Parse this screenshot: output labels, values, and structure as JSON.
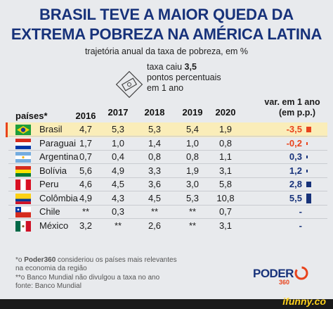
{
  "title_line1": "BRASIL TEVE A MAIOR QUEDA DA",
  "title_line2": "EXTREMA POBREZA NA AMÉRICA LATINA",
  "subtitle": "trajetória anual da taxa de pobreza, em %",
  "callout": {
    "prefix": "taxa caiu ",
    "value": "3,5",
    "line2": "pontos percentuais",
    "line3": "em 1 ano"
  },
  "headers": {
    "country": "países*",
    "years": [
      "2016",
      "2017",
      "2018",
      "2019",
      "2020"
    ],
    "var_line1": "var. em 1 ano",
    "var_line2": "(em p.p.)"
  },
  "colors": {
    "title": "#17327a",
    "highlight": "#faedb9",
    "negative": "#e8431c",
    "positive": "#17327a"
  },
  "chart_data": {
    "type": "table",
    "title": "BRASIL TEVE A MAIOR QUEDA DA EXTREMA POBREZA NA AMÉRICA LATINA",
    "subtitle": "trajetória anual da taxa de pobreza, em %",
    "columns": [
      "2016",
      "2017",
      "2018",
      "2019",
      "2020",
      "var. em 1 ano (em p.p.)"
    ],
    "rows": [
      {
        "country": "Brasil",
        "flag": "brazil-flag",
        "values": [
          "4,7",
          "5,3",
          "5,3",
          "5,4",
          "1,9"
        ],
        "var": "-3,5",
        "var_num": -3.5
      },
      {
        "country": "Paraguai",
        "flag": "paraguay-flag",
        "values": [
          "1,7",
          "1,0",
          "1,4",
          "1,0",
          "0,8"
        ],
        "var": "-0,2",
        "var_num": -0.2
      },
      {
        "country": "Argentina",
        "flag": "argentina-flag",
        "values": [
          "0,7",
          "0,4",
          "0,8",
          "0,8",
          "1,1"
        ],
        "var": "0,3",
        "var_num": 0.3
      },
      {
        "country": "Bolívia",
        "flag": "bolivia-flag",
        "values": [
          "5,6",
          "4,9",
          "3,3",
          "1,9",
          "3,1"
        ],
        "var": "1,2",
        "var_num": 1.2
      },
      {
        "country": "Peru",
        "flag": "peru-flag",
        "values": [
          "4,6",
          "4,5",
          "3,6",
          "3,0",
          "5,8"
        ],
        "var": "2,8",
        "var_num": 2.8
      },
      {
        "country": "Colômbia",
        "flag": "colombia-flag",
        "values": [
          "4,9",
          "4,3",
          "4,5",
          "5,3",
          "10,8"
        ],
        "var": "5,5",
        "var_num": 5.5
      },
      {
        "country": "Chile",
        "flag": "chile-flag",
        "values": [
          "**",
          "0,3",
          "**",
          "**",
          "0,7"
        ],
        "var": "-",
        "var_num": null
      },
      {
        "country": "México",
        "flag": "mexico-flag",
        "values": [
          "3,2",
          "**",
          "2,6",
          "**",
          "3,1"
        ],
        "var": "-",
        "var_num": null
      }
    ]
  },
  "footnotes": [
    {
      "star": "*o ",
      "brand": "Poder360",
      "text": " consideriou os países mais relevantes"
    },
    {
      "star": "",
      "brand": "",
      "text": "na economia da região"
    },
    {
      "star": "",
      "brand": "",
      "text": "**o Banco Mundial não divulgou a taxa no ano"
    },
    {
      "star": "",
      "brand": "",
      "text": "fonte: Banco Mundial"
    }
  ],
  "logo": {
    "text": "PODER",
    "number": "360"
  },
  "watermark": "ifunny.co"
}
